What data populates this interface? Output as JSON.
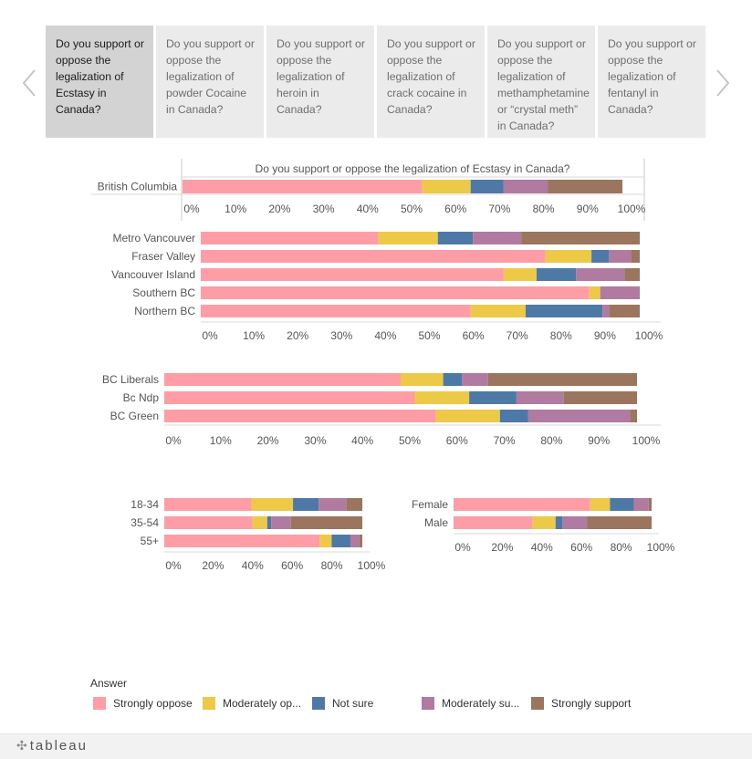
{
  "tabs": [
    {
      "label": "Do you support or oppose the legalization of Ecstasy in Canada?",
      "active": true
    },
    {
      "label": "Do you support or oppose the legalization of powder Cocaine in Canada?",
      "active": false
    },
    {
      "label": "Do you support or oppose the legalization of heroin in Canada?",
      "active": false
    },
    {
      "label": "Do you support or oppose the legalization of crack cocaine in Canada?",
      "active": false
    },
    {
      "label": "Do you support or oppose the legalization of methamphetamine or “crystal meth” in Canada?",
      "active": false
    },
    {
      "label": "Do you support or oppose the legalization of fentanyl in Canada?",
      "active": false
    }
  ],
  "nav": {
    "prev_icon": "chevron-left-icon",
    "next_icon": "chevron-right-icon"
  },
  "colors": {
    "Strongly oppose": "#ff9da7",
    "Moderately oppose": "#edc948",
    "Not sure": "#4e79a7",
    "Moderately support": "#b07aa1",
    "Strongly support": "#9c755f"
  },
  "chart_data": [
    {
      "id": "province",
      "type": "bar",
      "orientation": "horizontal",
      "stacked": true,
      "title": "Do you support or oppose the legalization of Ecstasy in Canada?",
      "categories": [
        "British Columbia"
      ],
      "series": [
        {
          "name": "Strongly oppose",
          "values": [
            54.5
          ]
        },
        {
          "name": "Moderately oppose",
          "values": [
            11
          ]
        },
        {
          "name": "Not sure",
          "values": [
            7.5
          ]
        },
        {
          "name": "Moderately support",
          "values": [
            10
          ]
        },
        {
          "name": "Strongly support",
          "values": [
            17
          ]
        }
      ],
      "xticks": [
        "0%",
        "10%",
        "20%",
        "30%",
        "40%",
        "50%",
        "60%",
        "70%",
        "80%",
        "90%",
        "100%"
      ],
      "xlim": [
        0,
        100
      ]
    },
    {
      "id": "region",
      "type": "bar",
      "orientation": "horizontal",
      "stacked": true,
      "categories": [
        "Metro Vancouver",
        "Fraser Valley",
        "Vancouver Island",
        "Southern BC",
        "Northern BC"
      ],
      "series": [
        {
          "name": "Strongly oppose",
          "values": [
            40.5,
            78.5,
            69,
            88.5,
            61.5
          ]
        },
        {
          "name": "Moderately oppose",
          "values": [
            13.5,
            10.5,
            7.5,
            2.5,
            12.5
          ]
        },
        {
          "name": "Not sure",
          "values": [
            8,
            4,
            9,
            0,
            17.5
          ]
        },
        {
          "name": "Moderately support",
          "values": [
            11,
            5,
            11,
            9,
            1.5
          ]
        },
        {
          "name": "Strongly support",
          "values": [
            27,
            2,
            3.5,
            0,
            7
          ]
        }
      ],
      "xticks": [
        "0%",
        "10%",
        "20%",
        "30%",
        "40%",
        "50%",
        "60%",
        "70%",
        "80%",
        "90%",
        "100%"
      ],
      "xlim": [
        0,
        100
      ]
    },
    {
      "id": "party",
      "type": "bar",
      "orientation": "horizontal",
      "stacked": true,
      "categories": [
        "BC Liberals",
        "Bc Ndp",
        "BC Green"
      ],
      "series": [
        {
          "name": "Strongly oppose",
          "values": [
            50,
            53,
            57.5
          ]
        },
        {
          "name": "Moderately oppose",
          "values": [
            9,
            11.5,
            13.5
          ]
        },
        {
          "name": "Not sure",
          "values": [
            4,
            10,
            6
          ]
        },
        {
          "name": "Moderately support",
          "values": [
            5.5,
            10,
            21.5
          ]
        },
        {
          "name": "Strongly support",
          "values": [
            31.5,
            15.5,
            1.5
          ]
        }
      ],
      "xticks": [
        "0%",
        "10%",
        "20%",
        "30%",
        "40%",
        "50%",
        "60%",
        "70%",
        "80%",
        "90%",
        "100%"
      ],
      "xlim": [
        0,
        100
      ]
    },
    {
      "id": "age",
      "type": "bar",
      "orientation": "horizontal",
      "stacked": true,
      "categories": [
        "18-34",
        "35-54",
        "55+"
      ],
      "series": [
        {
          "name": "Strongly oppose",
          "values": [
            44,
            44.5,
            78.5
          ]
        },
        {
          "name": "Moderately oppose",
          "values": [
            21,
            7.5,
            6
          ]
        },
        {
          "name": "Not sure",
          "values": [
            13,
            2,
            9.5
          ]
        },
        {
          "name": "Moderately support",
          "values": [
            14,
            10,
            4.5
          ]
        },
        {
          "name": "Strongly support",
          "values": [
            8,
            36,
            1.5
          ]
        }
      ],
      "xticks": [
        "0%",
        "20%",
        "40%",
        "60%",
        "80%",
        "100%"
      ],
      "xlim": [
        0,
        100
      ]
    },
    {
      "id": "gender",
      "type": "bar",
      "orientation": "horizontal",
      "stacked": true,
      "categories": [
        "Female",
        "Male"
      ],
      "series": [
        {
          "name": "Strongly oppose",
          "values": [
            69,
            40
          ]
        },
        {
          "name": "Moderately oppose",
          "values": [
            10,
            11.5
          ]
        },
        {
          "name": "Not sure",
          "values": [
            12,
            3.5
          ]
        },
        {
          "name": "Moderately support",
          "values": [
            7.5,
            12.5
          ]
        },
        {
          "name": "Strongly support",
          "values": [
            1.5,
            32.5
          ]
        }
      ],
      "xticks": [
        "0%",
        "20%",
        "40%",
        "60%",
        "80%",
        "100%"
      ],
      "xlim": [
        0,
        100
      ]
    }
  ],
  "legend": {
    "title": "Answer",
    "items": [
      {
        "label": "Strongly oppose",
        "key": "Strongly oppose"
      },
      {
        "label": "Moderately op...",
        "key": "Moderately oppose"
      },
      {
        "label": "Not sure",
        "key": "Not sure"
      },
      {
        "label": "Moderately su...",
        "key": "Moderately support"
      },
      {
        "label": "Strongly support",
        "key": "Strongly support"
      }
    ]
  },
  "footer": {
    "logo": "tableau"
  }
}
